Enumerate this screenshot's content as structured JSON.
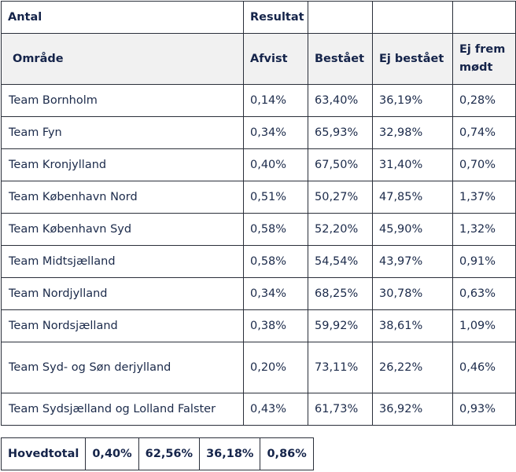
{
  "header": {
    "antal": "Antal",
    "resultat": "Resultat",
    "omraade": "Område",
    "afvist": "Afvist",
    "bestaaet": "Bestået",
    "ej_bestaaet": "Ej bestået",
    "ej_frem_1": "Ej frem",
    "ej_frem_2": "mødt"
  },
  "rows": [
    {
      "name": "Team Bornholm",
      "afvist": "0,14%",
      "bestaaet": "63,40%",
      "ej_bestaaet": "36,19%",
      "ej_frem": "0,28%"
    },
    {
      "name": "Team Fyn",
      "afvist": "0,34%",
      "bestaaet": "65,93%",
      "ej_bestaaet": "32,98%",
      "ej_frem": "0,74%"
    },
    {
      "name": "Team Kronjylland",
      "afvist": "0,40%",
      "bestaaet": "67,50%",
      "ej_bestaaet": "31,40%",
      "ej_frem": "0,70%"
    },
    {
      "name": "Team København Nord",
      "afvist": "0,51%",
      "bestaaet": "50,27%",
      "ej_bestaaet": "47,85%",
      "ej_frem": "1,37%"
    },
    {
      "name": "Team København Syd",
      "afvist": "0,58%",
      "bestaaet": "52,20%",
      "ej_bestaaet": "45,90%",
      "ej_frem": "1,32%"
    },
    {
      "name": "Team Midtsjælland",
      "afvist": "0,58%",
      "bestaaet": "54,54%",
      "ej_bestaaet": "43,97%",
      "ej_frem": "0,91%"
    },
    {
      "name": "Team Nordjylland",
      "afvist": "0,34%",
      "bestaaet": "68,25%",
      "ej_bestaaet": "30,78%",
      "ej_frem": "0,63%"
    },
    {
      "name": "Team Nordsjælland",
      "afvist": "0,38%",
      "bestaaet": "59,92%",
      "ej_bestaaet": "38,61%",
      "ej_frem": "1,09%"
    },
    {
      "name": "Team Syd- og Søn derjylland",
      "afvist": "0,20%",
      "bestaaet": "73,11%",
      "ej_bestaaet": "26,22%",
      "ej_frem": "0,46%"
    },
    {
      "name": "Team Sydsjælland og  Lolland Falster",
      "afvist": "0,43%",
      "bestaaet": "61,73%",
      "ej_bestaaet": "36,92%",
      "ej_frem": "0,93%"
    }
  ],
  "total": {
    "label": "Hovedtotal",
    "afvist": "0,40%",
    "bestaaet": "62,56%",
    "ej_bestaaet": "36,18%",
    "ej_frem": "0,86%"
  }
}
